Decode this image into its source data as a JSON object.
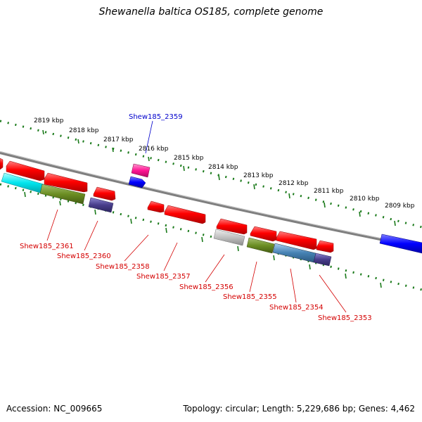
{
  "title": "Shewanella baltica OS185, complete genome",
  "footer": {
    "accession": "Accession: NC_009665",
    "summary": "Topology: circular; Length: 5,229,686 bp; Genes: 4,462"
  },
  "ticks": [
    "2819 kbp",
    "2818 kbp",
    "2817 kbp",
    "2816 kbp",
    "2815 kbp",
    "2814 kbp",
    "2813 kbp",
    "2812 kbp",
    "2811 kbp",
    "2810 kbp",
    "2809 kbp"
  ],
  "gene_labels": {
    "top": "Shew185_2359",
    "bottom": [
      "Shew185_2361",
      "Shew185_2360",
      "Shew185_2358",
      "Shew185_2357",
      "Shew185_2356",
      "Shew185_2355",
      "Shew185_2354",
      "Shew185_2353"
    ]
  },
  "colors": {
    "forward_cds": "#ff0000",
    "label_red": "#d40000",
    "label_blue": "#0000cc",
    "tick_green": "#1a7a1a",
    "backbone": "#808080"
  }
}
